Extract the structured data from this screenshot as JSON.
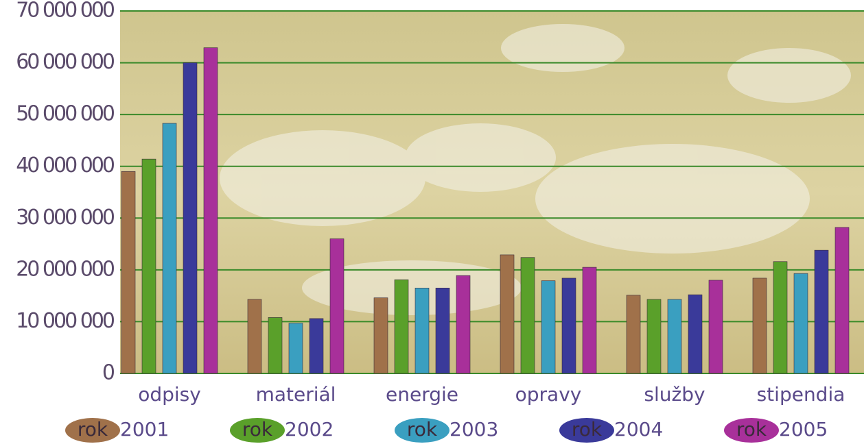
{
  "chart_data": {
    "type": "bar",
    "categories": [
      "odpisy",
      "materiál",
      "energie",
      "opravy",
      "služby",
      "stipendia"
    ],
    "legend_prefix": "rok",
    "series": [
      {
        "name": "2001",
        "color": "#a0714a",
        "values": [
          39000000,
          14300000,
          14600000,
          22900000,
          15100000,
          18400000
        ]
      },
      {
        "name": "2002",
        "color": "#5aa02a",
        "values": [
          41400000,
          10800000,
          18100000,
          22400000,
          14300000,
          21600000
        ]
      },
      {
        "name": "2003",
        "color": "#3a9fc0",
        "values": [
          48300000,
          9700000,
          16500000,
          17900000,
          14300000,
          19300000
        ]
      },
      {
        "name": "2004",
        "color": "#3a3a9a",
        "values": [
          60000000,
          10600000,
          16500000,
          18400000,
          15200000,
          23800000
        ]
      },
      {
        "name": "2005",
        "color": "#a8309a",
        "values": [
          62900000,
          26000000,
          18900000,
          20500000,
          18000000,
          28200000
        ]
      }
    ],
    "ylim": [
      0,
      70000000
    ],
    "yticks": [
      0,
      {
        "value": 10000000,
        "label": "10 000 000"
      },
      {
        "value": 20000000,
        "label": "20 000 000"
      },
      {
        "value": 30000000,
        "label": "30 000 000"
      },
      {
        "value": 40000000,
        "label": "40 000 000"
      },
      {
        "value": 50000000,
        "label": "50 000 000"
      },
      {
        "value": 60000000,
        "label": "60 000 000"
      },
      {
        "value": 70000000,
        "label": "70 000 000"
      }
    ],
    "grid": true
  }
}
